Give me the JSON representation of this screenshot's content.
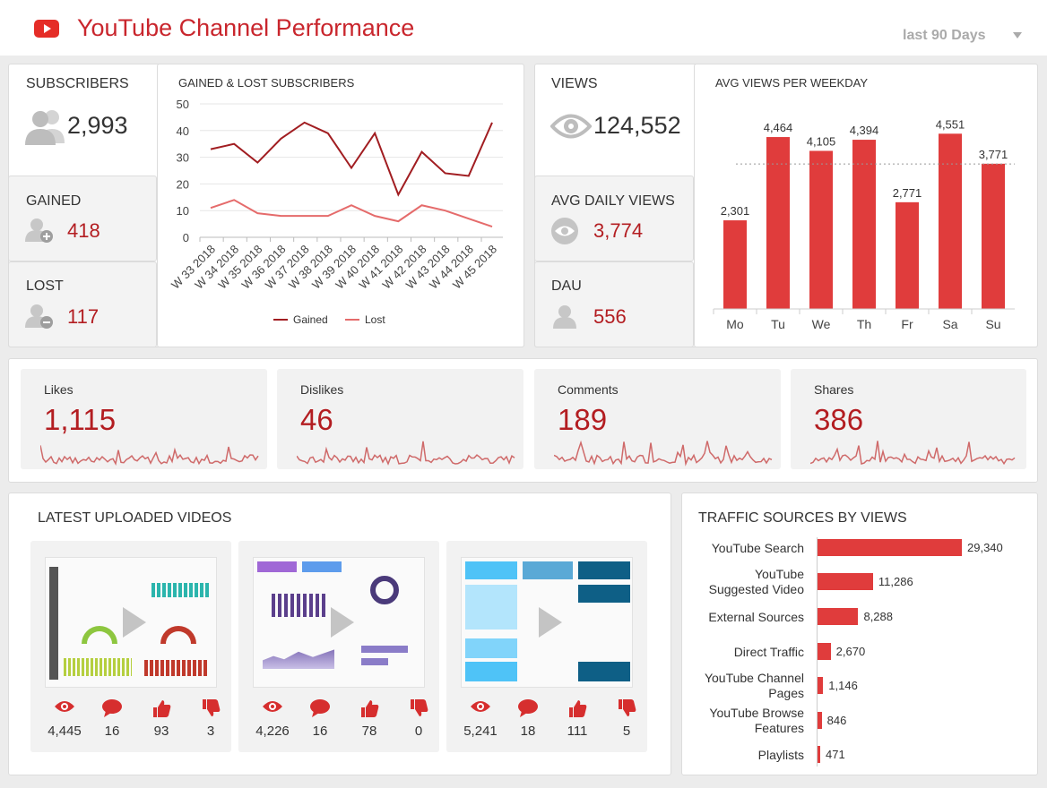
{
  "header": {
    "title": "YouTube Channel Performance",
    "period": "last 90 Days"
  },
  "subscribers": {
    "label": "SUBSCRIBERS",
    "value": "2,993"
  },
  "gained": {
    "label": "GAINED",
    "value": "418"
  },
  "lost": {
    "label": "LOST",
    "value": "117"
  },
  "views": {
    "label": "VIEWS",
    "value": "124,552"
  },
  "avg_daily": {
    "label": "AVG DAILY VIEWS",
    "value": "3,774"
  },
  "dau": {
    "label": "DAU",
    "value": "556"
  },
  "engagement": [
    {
      "name": "Likes",
      "value": "1,115"
    },
    {
      "name": "Dislikes",
      "value": "46"
    },
    {
      "name": "Comments",
      "value": "189"
    },
    {
      "name": "Shares",
      "value": "386"
    }
  ],
  "latest": {
    "title": "LATEST UPLOADED VIDEOS",
    "videos": [
      {
        "views": "4,445",
        "comments": "16",
        "likes": "93",
        "dislikes": "3"
      },
      {
        "views": "4,226",
        "comments": "16",
        "likes": "78",
        "dislikes": "0"
      },
      {
        "views": "5,241",
        "comments": "18",
        "likes": "111",
        "dislikes": "5"
      }
    ]
  },
  "colors": {
    "accent": "#c9262d",
    "bar": "#e03c3c",
    "gained_line": "#a11d21",
    "lost_line": "#e56b6b"
  },
  "chart_data": [
    {
      "type": "line",
      "title": "GAINED & LOST SUBSCRIBERS",
      "categories": [
        "W 33 2018",
        "W 34 2018",
        "W 35 2018",
        "W 36 2018",
        "W 37 2018",
        "W 38 2018",
        "W 39 2018",
        "W 40 2018",
        "W 41 2018",
        "W 42 2018",
        "W 43 2018",
        "W 44 2018",
        "W 45 2018"
      ],
      "series": [
        {
          "name": "Gained",
          "values": [
            33,
            35,
            28,
            37,
            43,
            39,
            26,
            39,
            16,
            32,
            24,
            23,
            43
          ]
        },
        {
          "name": "Lost",
          "values": [
            11,
            14,
            9,
            8,
            8,
            8,
            12,
            8,
            6,
            12,
            10,
            7,
            4
          ]
        }
      ],
      "ylim": [
        0,
        50
      ],
      "yticks": [
        0,
        10,
        20,
        30,
        40,
        50
      ],
      "grid": true,
      "legend": "bottom"
    },
    {
      "type": "bar",
      "title": "AVG VIEWS PER WEEKDAY",
      "categories": [
        "Mo",
        "Tu",
        "We",
        "Th",
        "Fr",
        "Sa",
        "Su"
      ],
      "values": [
        2301,
        4464,
        4105,
        4394,
        2771,
        4551,
        3771
      ],
      "labels": [
        "2,301",
        "4,464",
        "4,105",
        "4,394",
        "2,771",
        "4,551",
        "3,771"
      ],
      "reference_line": "average",
      "ylim": [
        0,
        5000
      ]
    },
    {
      "type": "bar",
      "orientation": "horizontal",
      "title": "TRAFFIC SOURCES BY VIEWS",
      "categories": [
        "YouTube Search",
        "YouTube Suggested Video",
        "External Sources",
        "Direct Traffic",
        "YouTube Channel Pages",
        "YouTube Browse Features",
        "Playlists"
      ],
      "category_lines": [
        [
          "YouTube Search"
        ],
        [
          "YouTube",
          "Suggested Video"
        ],
        [
          "External Sources"
        ],
        [
          "Direct Traffic"
        ],
        [
          "YouTube Channel",
          "Pages"
        ],
        [
          "YouTube Browse",
          "Features"
        ],
        [
          "Playlists"
        ]
      ],
      "values": [
        29340,
        11286,
        8288,
        2670,
        1146,
        846,
        471
      ],
      "labels": [
        "29,340",
        "11,286",
        "8,288",
        "2,670",
        "1,146",
        "846",
        "471"
      ]
    }
  ]
}
